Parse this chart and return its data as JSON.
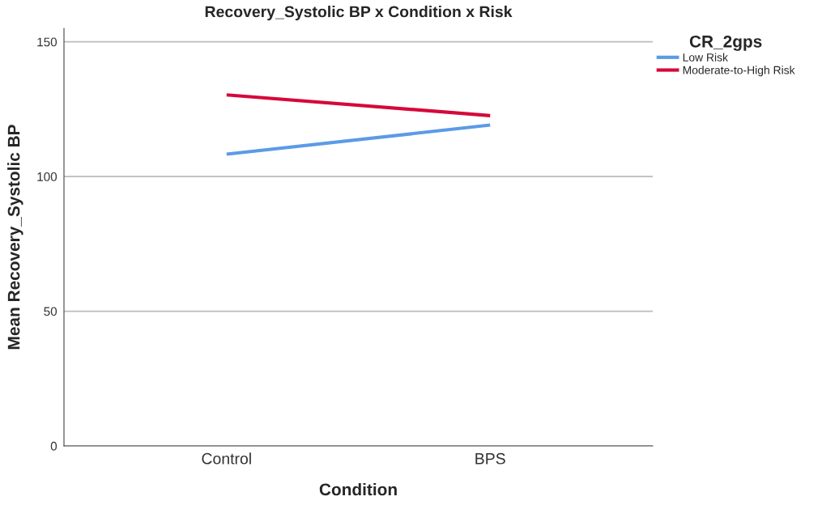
{
  "chart_data": {
    "type": "line",
    "title": "Recovery_Systolic BP x Condition x Risk",
    "xlabel": "Condition",
    "ylabel": "Mean Recovery_Systolic BP",
    "legend_title": "CR_2gps",
    "categories": [
      "Control",
      "BPS"
    ],
    "series": [
      {
        "name": "Low Risk",
        "color": "#5b9be6",
        "values": [
          108.3,
          119.1
        ]
      },
      {
        "name": "Moderate-to-High Risk",
        "color": "#d6083b",
        "values": [
          130.3,
          122.6
        ]
      }
    ],
    "ylim": [
      0,
      155
    ],
    "yticks": [
      0,
      50,
      100,
      150
    ],
    "grid": "y",
    "legend": "top right",
    "marker": "none",
    "line_style": "solid"
  }
}
